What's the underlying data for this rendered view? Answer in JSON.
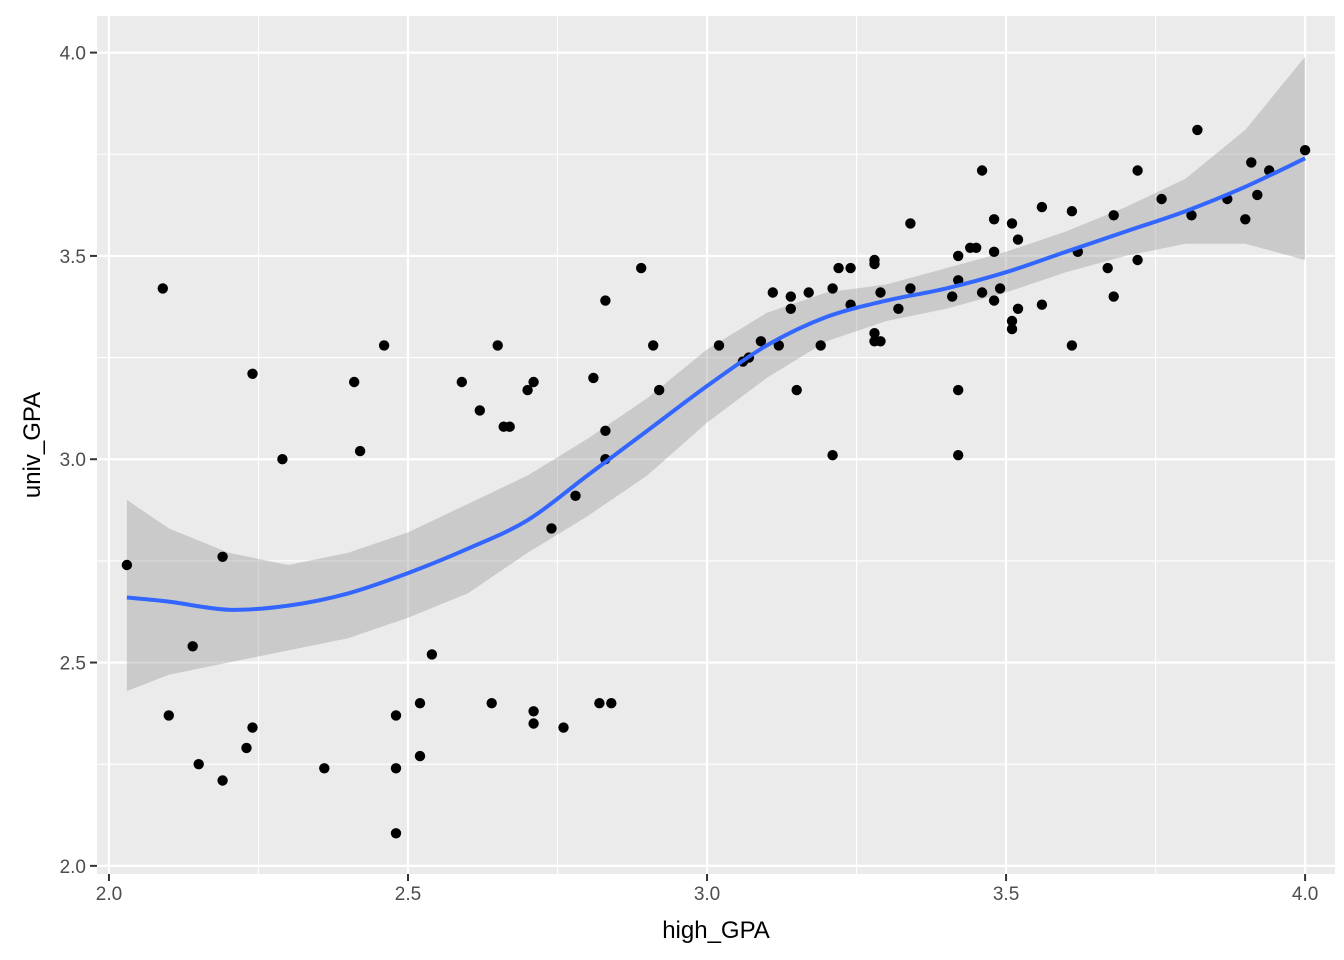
{
  "chart_data": {
    "type": "scatter",
    "title": "",
    "xlabel": "high_GPA",
    "ylabel": "univ_GPA",
    "xlim": [
      1.98,
      4.05
    ],
    "ylim": [
      1.98,
      4.09
    ],
    "x_ticks": [
      2.0,
      2.5,
      3.0,
      3.5,
      4.0
    ],
    "x_tick_labels": [
      "2.0",
      "2.5",
      "3.0",
      "3.5",
      "4.0"
    ],
    "y_ticks": [
      2.0,
      2.5,
      3.0,
      3.5,
      4.0
    ],
    "y_tick_labels": [
      "2.0",
      "2.5",
      "3.0",
      "3.5",
      "4.0"
    ],
    "x_minor": [
      2.25,
      2.75,
      3.25,
      3.75
    ],
    "y_minor": [
      2.25,
      2.75,
      3.25,
      3.75
    ],
    "grid": true,
    "legend": "none",
    "colors": {
      "panel": "#ebebeb",
      "grid": "#ffffff",
      "points": "#000000",
      "smooth_line": "#3366ff",
      "ribbon": "#999999"
    },
    "points": [
      [
        2.03,
        2.74
      ],
      [
        2.09,
        3.42
      ],
      [
        2.1,
        2.37
      ],
      [
        2.14,
        2.54
      ],
      [
        2.15,
        2.25
      ],
      [
        2.19,
        2.21
      ],
      [
        2.19,
        2.76
      ],
      [
        2.23,
        2.29
      ],
      [
        2.24,
        2.34
      ],
      [
        2.24,
        3.21
      ],
      [
        2.29,
        3.0
      ],
      [
        2.36,
        2.24
      ],
      [
        2.41,
        3.19
      ],
      [
        2.42,
        3.02
      ],
      [
        2.46,
        3.28
      ],
      [
        2.48,
        2.37
      ],
      [
        2.48,
        2.24
      ],
      [
        2.48,
        2.08
      ],
      [
        2.52,
        2.4
      ],
      [
        2.52,
        2.27
      ],
      [
        2.54,
        2.52
      ],
      [
        2.59,
        3.19
      ],
      [
        2.62,
        3.12
      ],
      [
        2.64,
        2.4
      ],
      [
        2.65,
        3.28
      ],
      [
        2.66,
        3.08
      ],
      [
        2.67,
        3.08
      ],
      [
        2.7,
        3.17
      ],
      [
        2.71,
        3.19
      ],
      [
        2.71,
        2.38
      ],
      [
        2.71,
        2.35
      ],
      [
        2.74,
        2.83
      ],
      [
        2.76,
        2.34
      ],
      [
        2.78,
        2.91
      ],
      [
        2.81,
        3.2
      ],
      [
        2.82,
        2.4
      ],
      [
        2.83,
        3.39
      ],
      [
        2.83,
        3.07
      ],
      [
        2.83,
        3.0
      ],
      [
        2.84,
        2.4
      ],
      [
        2.89,
        3.47
      ],
      [
        2.91,
        3.28
      ],
      [
        2.92,
        3.17
      ],
      [
        3.02,
        3.28
      ],
      [
        3.06,
        3.24
      ],
      [
        3.07,
        3.25
      ],
      [
        3.09,
        3.29
      ],
      [
        3.11,
        3.41
      ],
      [
        3.12,
        3.28
      ],
      [
        3.14,
        3.4
      ],
      [
        3.14,
        3.37
      ],
      [
        3.15,
        3.17
      ],
      [
        3.17,
        3.41
      ],
      [
        3.19,
        3.28
      ],
      [
        3.21,
        3.42
      ],
      [
        3.21,
        3.01
      ],
      [
        3.22,
        3.47
      ],
      [
        3.24,
        3.47
      ],
      [
        3.24,
        3.38
      ],
      [
        3.28,
        3.49
      ],
      [
        3.28,
        3.48
      ],
      [
        3.28,
        3.31
      ],
      [
        3.28,
        3.29
      ],
      [
        3.29,
        3.29
      ],
      [
        3.29,
        3.41
      ],
      [
        3.32,
        3.37
      ],
      [
        3.34,
        3.58
      ],
      [
        3.34,
        3.42
      ],
      [
        3.41,
        3.4
      ],
      [
        3.42,
        3.5
      ],
      [
        3.42,
        3.44
      ],
      [
        3.42,
        3.17
      ],
      [
        3.42,
        3.01
      ],
      [
        3.44,
        3.52
      ],
      [
        3.45,
        3.52
      ],
      [
        3.46,
        3.71
      ],
      [
        3.46,
        3.41
      ],
      [
        3.48,
        3.59
      ],
      [
        3.48,
        3.51
      ],
      [
        3.48,
        3.39
      ],
      [
        3.49,
        3.42
      ],
      [
        3.51,
        3.58
      ],
      [
        3.51,
        3.34
      ],
      [
        3.51,
        3.32
      ],
      [
        3.52,
        3.54
      ],
      [
        3.52,
        3.37
      ],
      [
        3.56,
        3.62
      ],
      [
        3.56,
        3.38
      ],
      [
        3.61,
        3.61
      ],
      [
        3.61,
        3.28
      ],
      [
        3.62,
        3.51
      ],
      [
        3.67,
        3.47
      ],
      [
        3.68,
        3.6
      ],
      [
        3.68,
        3.4
      ],
      [
        3.72,
        3.71
      ],
      [
        3.72,
        3.49
      ],
      [
        3.76,
        3.64
      ],
      [
        3.81,
        3.6
      ],
      [
        3.82,
        3.81
      ],
      [
        3.87,
        3.64
      ],
      [
        3.9,
        3.59
      ],
      [
        3.91,
        3.73
      ],
      [
        3.92,
        3.65
      ],
      [
        3.94,
        3.71
      ],
      [
        4.0,
        3.76
      ]
    ],
    "smooth": {
      "x": [
        2.03,
        2.1,
        2.2,
        2.3,
        2.4,
        2.5,
        2.6,
        2.7,
        2.8,
        2.9,
        3.0,
        3.1,
        3.2,
        3.3,
        3.4,
        3.5,
        3.6,
        3.7,
        3.8,
        3.9,
        4.0
      ],
      "y": [
        2.66,
        2.65,
        2.63,
        2.64,
        2.67,
        2.72,
        2.78,
        2.85,
        2.96,
        3.07,
        3.18,
        3.28,
        3.35,
        3.39,
        3.42,
        3.46,
        3.51,
        3.56,
        3.61,
        3.67,
        3.74
      ],
      "lower": [
        2.43,
        2.47,
        2.5,
        2.53,
        2.56,
        2.61,
        2.67,
        2.77,
        2.86,
        2.96,
        3.09,
        3.2,
        3.29,
        3.34,
        3.37,
        3.41,
        3.46,
        3.5,
        3.53,
        3.53,
        3.49
      ],
      "upper": [
        2.9,
        2.83,
        2.77,
        2.74,
        2.77,
        2.82,
        2.89,
        2.96,
        3.05,
        3.15,
        3.27,
        3.36,
        3.41,
        3.43,
        3.47,
        3.51,
        3.56,
        3.62,
        3.69,
        3.81,
        3.99
      ]
    }
  }
}
